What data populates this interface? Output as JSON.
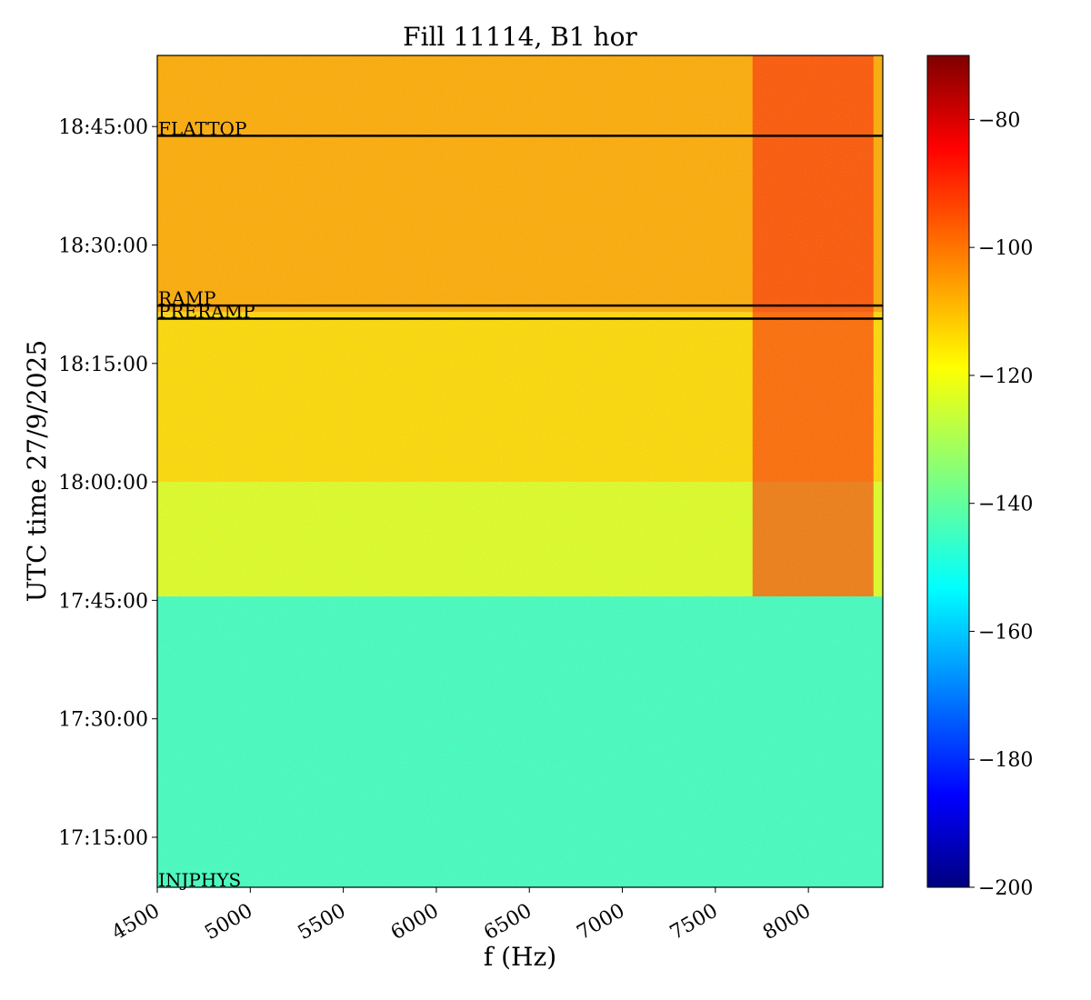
{
  "chart_data": {
    "type": "heatmap",
    "title": "Fill 11114, B1 hor",
    "xlabel": "f (Hz)",
    "ylabel": "UTC time 27/9/2025",
    "x_ticks": [
      "4500",
      "5000",
      "5500",
      "6000",
      "6500",
      "7000",
      "7500",
      "8000"
    ],
    "x_tick_values": [
      4500,
      5000,
      5500,
      6000,
      6500,
      7000,
      7500,
      8000
    ],
    "xlim": [
      4500,
      8400
    ],
    "y_ticks": [
      "17:15:00",
      "17:30:00",
      "17:45:00",
      "18:00:00",
      "18:15:00",
      "18:30:00",
      "18:45:00"
    ],
    "y_tick_values": [
      "17:15:00",
      "17:30:00",
      "17:45:00",
      "18:00:00",
      "18:15:00",
      "18:30:00",
      "18:45:00"
    ],
    "ylim": [
      "17:08:40",
      "18:54:00"
    ],
    "colorbar": {
      "colormap": "jet",
      "range": [
        -200,
        -70
      ],
      "ticks": [
        "−80",
        "−100",
        "−120",
        "−140",
        "−160",
        "−180",
        "−200"
      ],
      "tick_values": [
        -80,
        -100,
        -120,
        -140,
        -160,
        -180,
        -200
      ]
    },
    "regions": [
      {
        "from": "17:08:40",
        "to": "17:45:30",
        "level_dB": -143
      },
      {
        "from": "17:45:30",
        "to": "18:00:00",
        "level_dB": -123
      },
      {
        "from": "18:00:00",
        "to": "18:21:30",
        "level_dB": -114
      },
      {
        "from": "18:21:30",
        "to": "18:54:00",
        "level_dB": -108
      }
    ],
    "hot_band": {
      "f_from": 7700,
      "f_to": 8350,
      "level_dB": -88
    },
    "markers": [
      {
        "label": "FLATTOP",
        "time": "18:43:50"
      },
      {
        "label": "RAMP",
        "time": "18:22:20"
      },
      {
        "label": "PRERAMP",
        "time": "18:20:40"
      },
      {
        "label": "INJPHYS",
        "time": "17:08:40"
      }
    ],
    "grid": false
  }
}
